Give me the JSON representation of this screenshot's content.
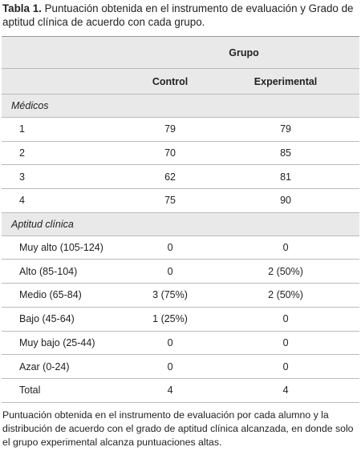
{
  "caption": {
    "label": "Tabla 1.",
    "text": "Puntuación obtenida en el instrumento de evaluación y Grado de aptitud clínica de acuerdo con cada grupo."
  },
  "table": {
    "group_header": "Grupo",
    "columns": [
      "Control",
      "Experimental"
    ],
    "sections": [
      {
        "title": "Médicos",
        "rows": [
          [
            "1",
            "79",
            "79"
          ],
          [
            "2",
            "70",
            "85"
          ],
          [
            "3",
            "62",
            "81"
          ],
          [
            "4",
            "75",
            "90"
          ]
        ]
      },
      {
        "title": "Aptitud clínica",
        "rows": [
          [
            "Muy alto (105-124)",
            "0",
            "0"
          ],
          [
            "Alto (85-104)",
            "0",
            "2 (50%)"
          ],
          [
            "Medio (65-84)",
            "3 (75%)",
            "2 (50%)"
          ],
          [
            "Bajo (45-64)",
            "1 (25%)",
            "0"
          ],
          [
            "Muy bajo (25-44)",
            "0",
            "0"
          ],
          [
            "Azar (0-24)",
            "0",
            "0"
          ],
          [
            "Total",
            "4",
            "4"
          ]
        ]
      }
    ]
  },
  "footnote": "Puntuación obtenida en el instrumento de evaluación por cada alumno y la distribución de acuerdo con el grado de aptitud clínica alcanzada, en donde solo el grupo experimental alcanza puntuaciones altas."
}
